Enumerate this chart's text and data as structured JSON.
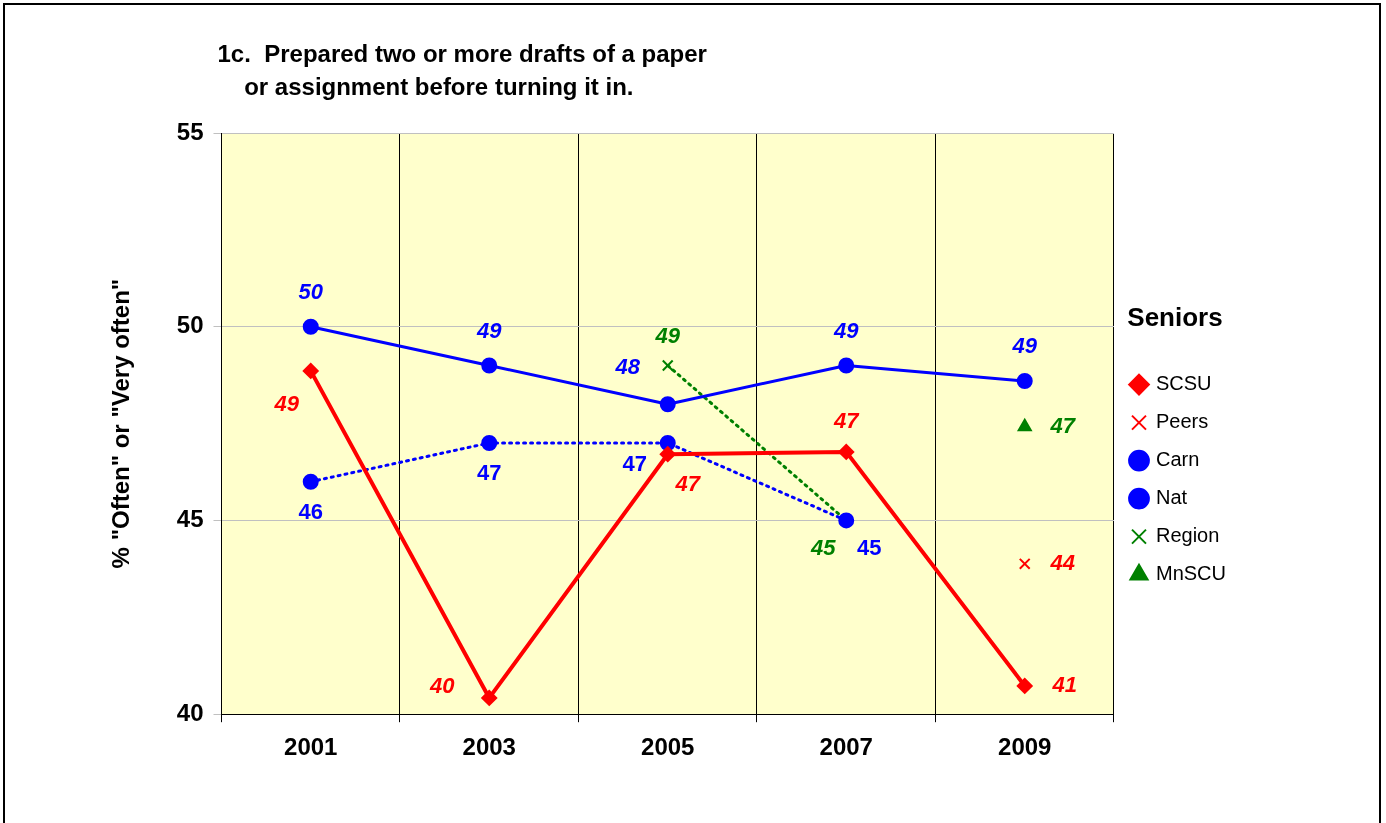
{
  "chart_data": {
    "type": "line",
    "title": "1c.  Prepared two or more drafts of a paper\n    or assignment before turning it in.",
    "ylabel": "% \"Often\" or \"Very often\"",
    "legend_title": "Seniors",
    "categories": [
      "2001",
      "2003",
      "2005",
      "2007",
      "2009"
    ],
    "series": [
      {
        "name": "SCSU",
        "color": "#ff0000",
        "values": [
          48.86,
          40.42,
          46.71,
          46.77,
          40.73
        ],
        "value_labels": [
          "49",
          "40",
          "47",
          "47",
          "41"
        ],
        "marker": "diamond",
        "line_style": "solid"
      },
      {
        "name": "Peers",
        "color": "#ff0000",
        "values": [
          null,
          null,
          null,
          null,
          43.88
        ],
        "value_labels": [
          null,
          null,
          null,
          null,
          "44"
        ],
        "marker": "cross",
        "line_style": "none"
      },
      {
        "name": "Carn",
        "color": "#0000ff",
        "values": [
          50,
          49,
          48,
          49,
          48.6
        ],
        "value_labels": [
          "50",
          "49",
          "48",
          "49",
          "49"
        ],
        "marker": "circle",
        "line_style": "solid"
      },
      {
        "name": "Nat",
        "color": "#0000ff",
        "values": [
          46,
          47,
          47,
          45,
          null
        ],
        "value_labels": [
          "46",
          "47",
          "47",
          "45",
          null
        ],
        "marker": "circle",
        "line_style": "dotted"
      },
      {
        "name": "Region",
        "color": "#008000",
        "values": [
          null,
          null,
          49,
          45,
          null
        ],
        "value_labels": [
          null,
          null,
          "49",
          "45",
          null
        ],
        "marker": "cross",
        "line_style": "dotted"
      },
      {
        "name": "MnSCU",
        "color": "#008000",
        "values": [
          null,
          null,
          null,
          null,
          47.42
        ],
        "value_labels": [
          null,
          null,
          null,
          null,
          "47"
        ],
        "marker": "triangle",
        "line_style": "none"
      }
    ],
    "ylim": [
      40,
      55
    ],
    "yticks": [
      40,
      45,
      50,
      55
    ],
    "grid": true,
    "legend": "right"
  }
}
